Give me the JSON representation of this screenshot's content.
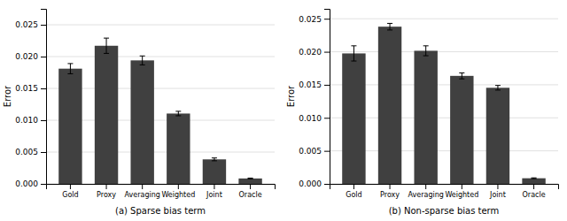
{
  "chart_data": [
    {
      "type": "bar",
      "categories": [
        "Gold",
        "Proxy",
        "Averaging",
        "Weighted",
        "Joint",
        "Oracle"
      ],
      "values": [
        0.0181,
        0.0217,
        0.0194,
        0.01105,
        0.00385,
        0.00085
      ],
      "errors": [
        0.0008,
        0.0012,
        0.0007,
        0.00035,
        0.00022,
        6e-05
      ],
      "xlabel": "(a) Sparse bias term",
      "ylabel": "Error",
      "color": "#404040",
      "ylim": [
        0,
        0.0275
      ],
      "yticks": [
        {
          "value": 0.0,
          "label": "0.000"
        },
        {
          "value": 0.005,
          "label": "0.005"
        },
        {
          "value": 0.01,
          "label": "0.010"
        },
        {
          "value": 0.015,
          "label": "0.015"
        },
        {
          "value": 0.02,
          "label": "0.020"
        },
        {
          "value": 0.025,
          "label": "0.025"
        }
      ],
      "grid": true
    },
    {
      "type": "bar",
      "categories": [
        "Gold",
        "Proxy",
        "Averaging",
        "Weighted",
        "Joint",
        "Oracle"
      ],
      "values": [
        0.01975,
        0.0238,
        0.02015,
        0.01635,
        0.01455,
        0.00085
      ],
      "errors": [
        0.00115,
        0.0005,
        0.00075,
        0.00045,
        0.00035,
        6e-05
      ],
      "xlabel": "(b) Non-sparse bias term",
      "ylabel": "Error",
      "color": "#404040",
      "ylim": [
        0,
        0.0265
      ],
      "yticks": [
        {
          "value": 0.0,
          "label": "0.000"
        },
        {
          "value": 0.005,
          "label": "0.005"
        },
        {
          "value": 0.01,
          "label": "0.010"
        },
        {
          "value": 0.015,
          "label": "0.015"
        },
        {
          "value": 0.02,
          "label": "0.020"
        },
        {
          "value": 0.025,
          "label": "0.025"
        }
      ],
      "grid": true
    }
  ]
}
